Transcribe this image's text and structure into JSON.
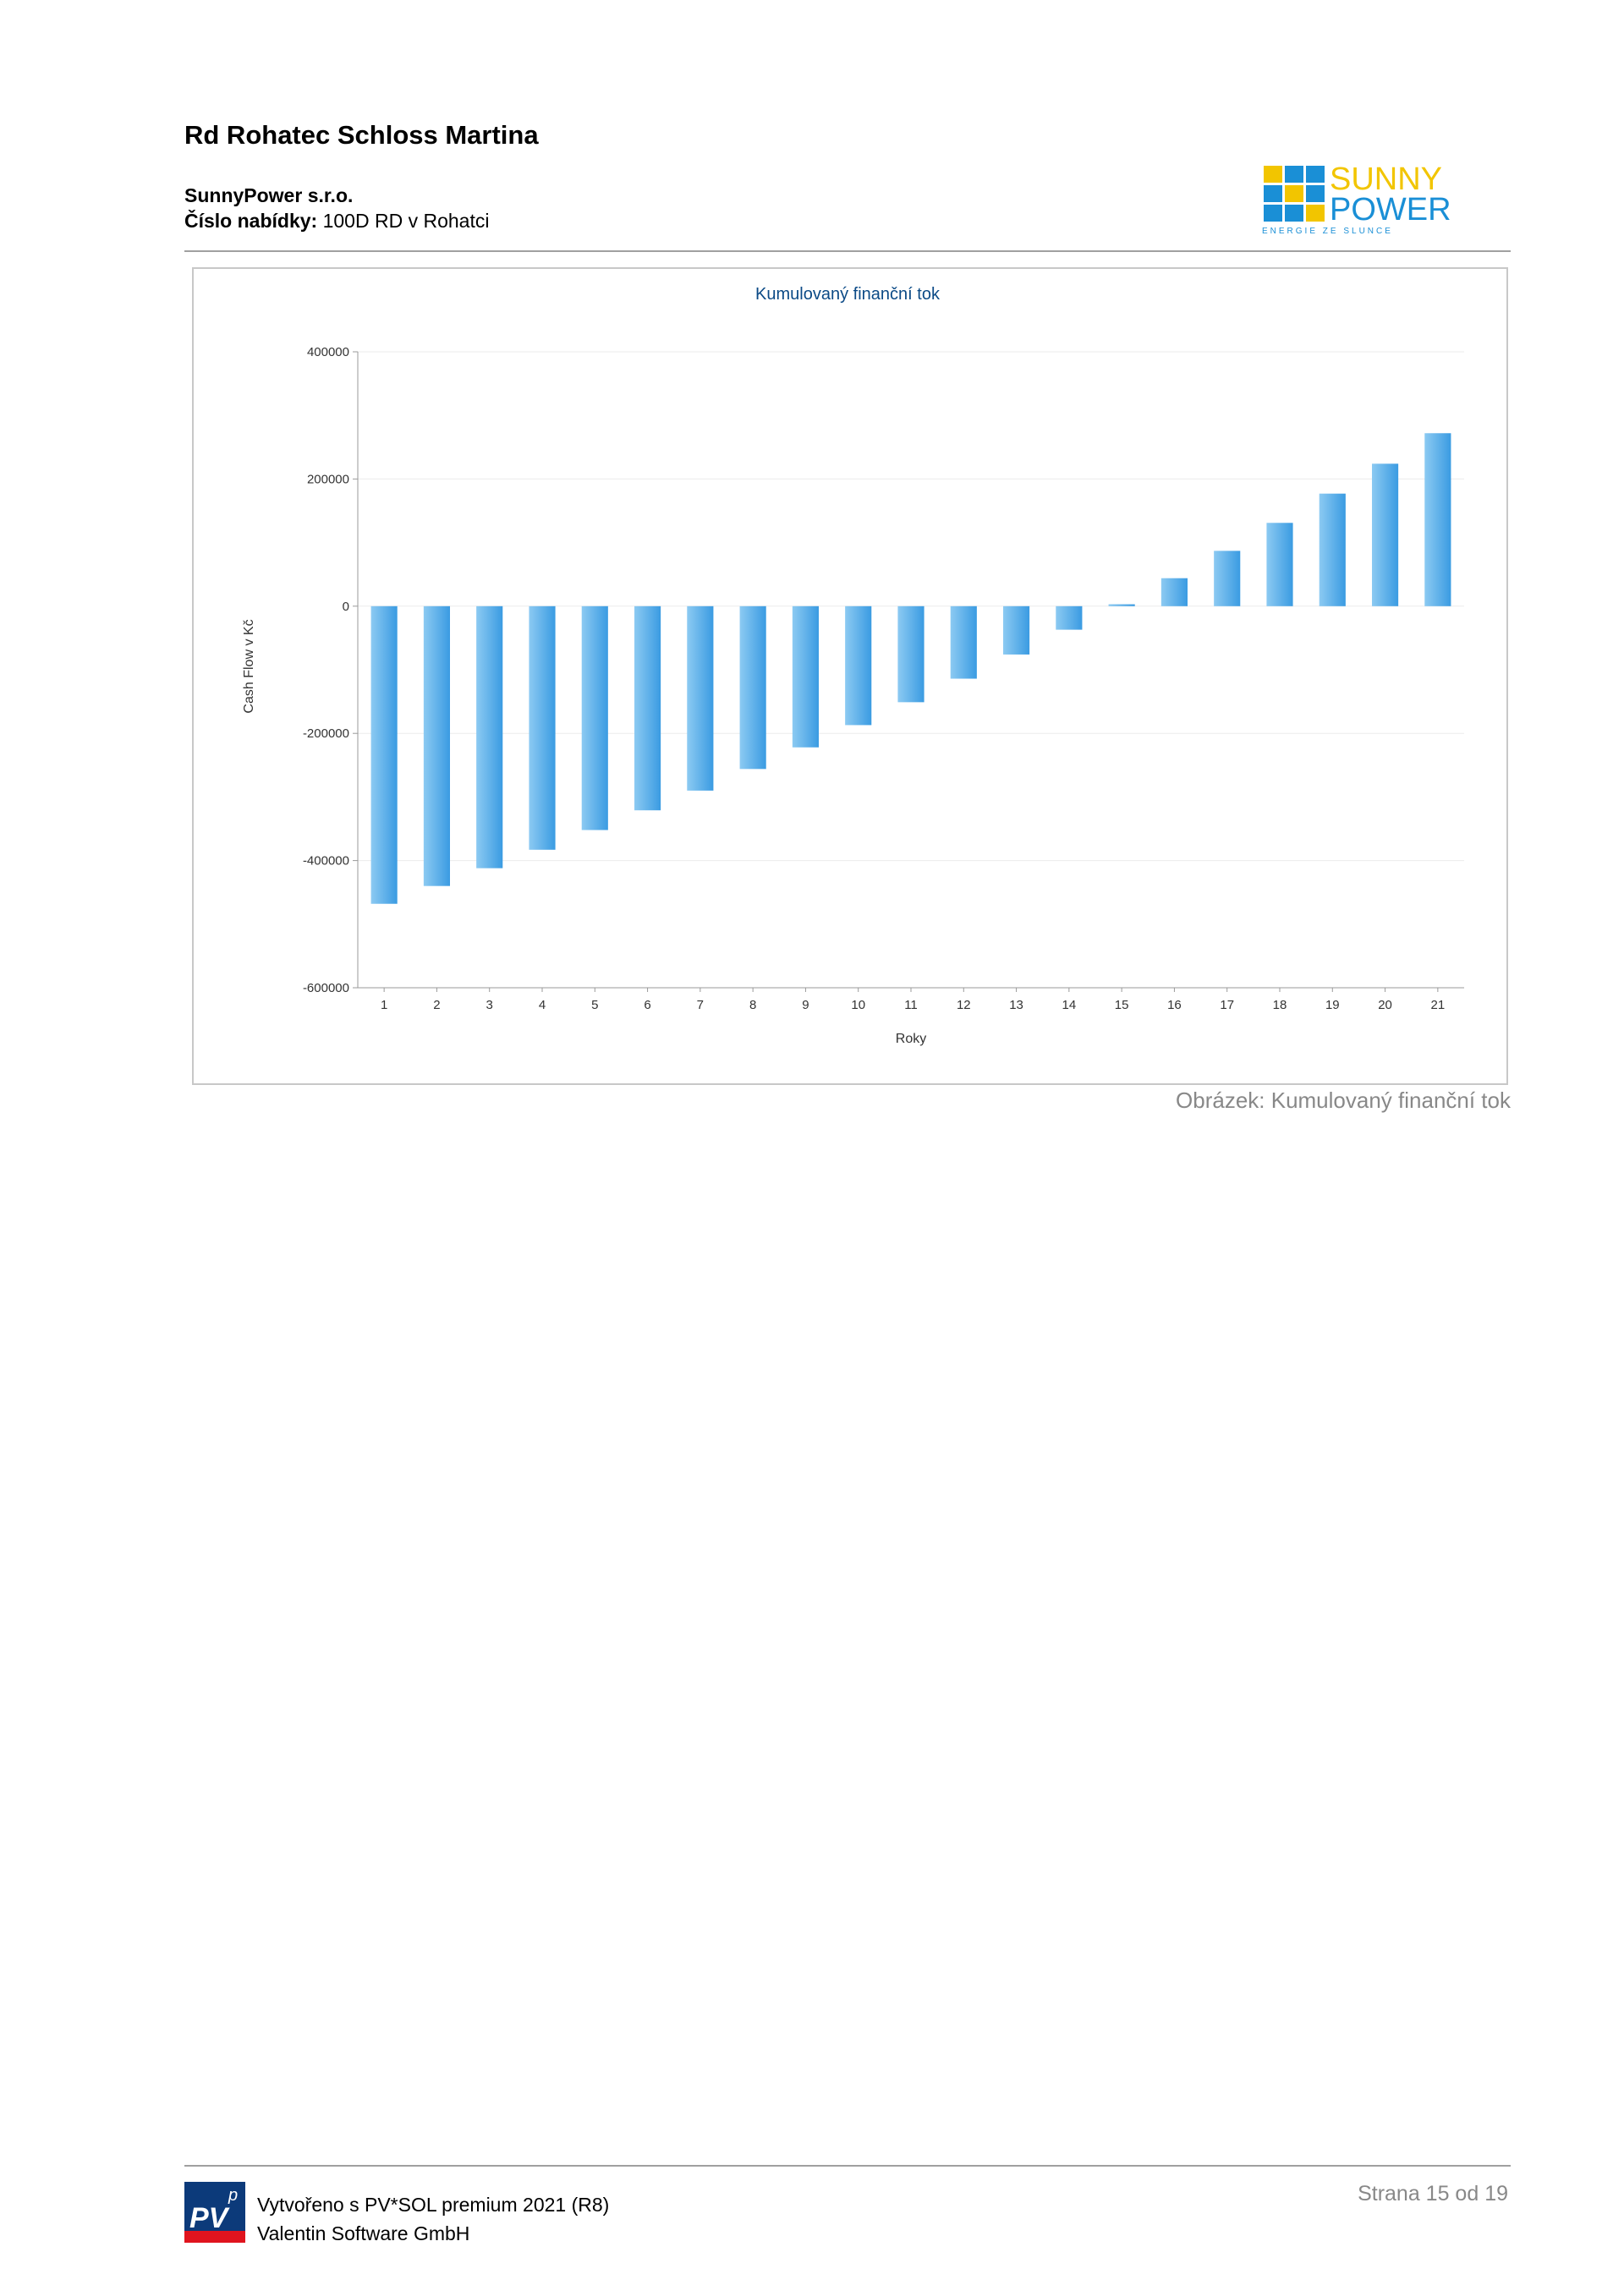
{
  "header": {
    "title": "Rd Rohatec Schloss Martina",
    "company": "SunnyPower s.r.o.",
    "offer_label": "Číslo nabídky:",
    "offer_value": "100D RD v Rohatci",
    "logo": {
      "line1": "SUNNY",
      "line2": "POWER",
      "tagline": "ENERGIE ZE SLUNCE",
      "colors": {
        "yellow": "#f2c500",
        "blue": "#1a8fd6"
      }
    }
  },
  "figure": {
    "caption": "Obrázek: Kumulovaný finanční tok"
  },
  "chart_data": {
    "type": "bar",
    "title": "Kumulovaný finanční tok",
    "xlabel": "Roky",
    "ylabel": "Cash Flow v Kč",
    "categories": [
      "1",
      "2",
      "3",
      "4",
      "5",
      "6",
      "7",
      "8",
      "9",
      "10",
      "11",
      "12",
      "13",
      "14",
      "15",
      "16",
      "17",
      "18",
      "19",
      "20",
      "21"
    ],
    "values": [
      -468000,
      -440000,
      -412000,
      -383000,
      -352000,
      -321000,
      -290000,
      -256000,
      -222000,
      -187000,
      -151000,
      -114000,
      -76000,
      -37000,
      3000,
      44000,
      87000,
      131000,
      177000,
      224000,
      272000
    ],
    "ylim": [
      -600000,
      400000
    ],
    "yticks": [
      400000,
      200000,
      0,
      -200000,
      -400000,
      -600000
    ],
    "grid": true,
    "colors": {
      "bar_light": "#8ccaf2",
      "bar_dark": "#3a9be2",
      "title": "#0b4a86",
      "grid": "#ebebeb",
      "axis": "#9a9a9a"
    }
  },
  "footer": {
    "created": "Vytvořeno s PV*SOL premium 2021 (R8)",
    "vendor": "Valentin Software GmbH",
    "page": "Strana 15 od 19",
    "pv_logo": {
      "text": "PV",
      "sup": "p"
    }
  }
}
